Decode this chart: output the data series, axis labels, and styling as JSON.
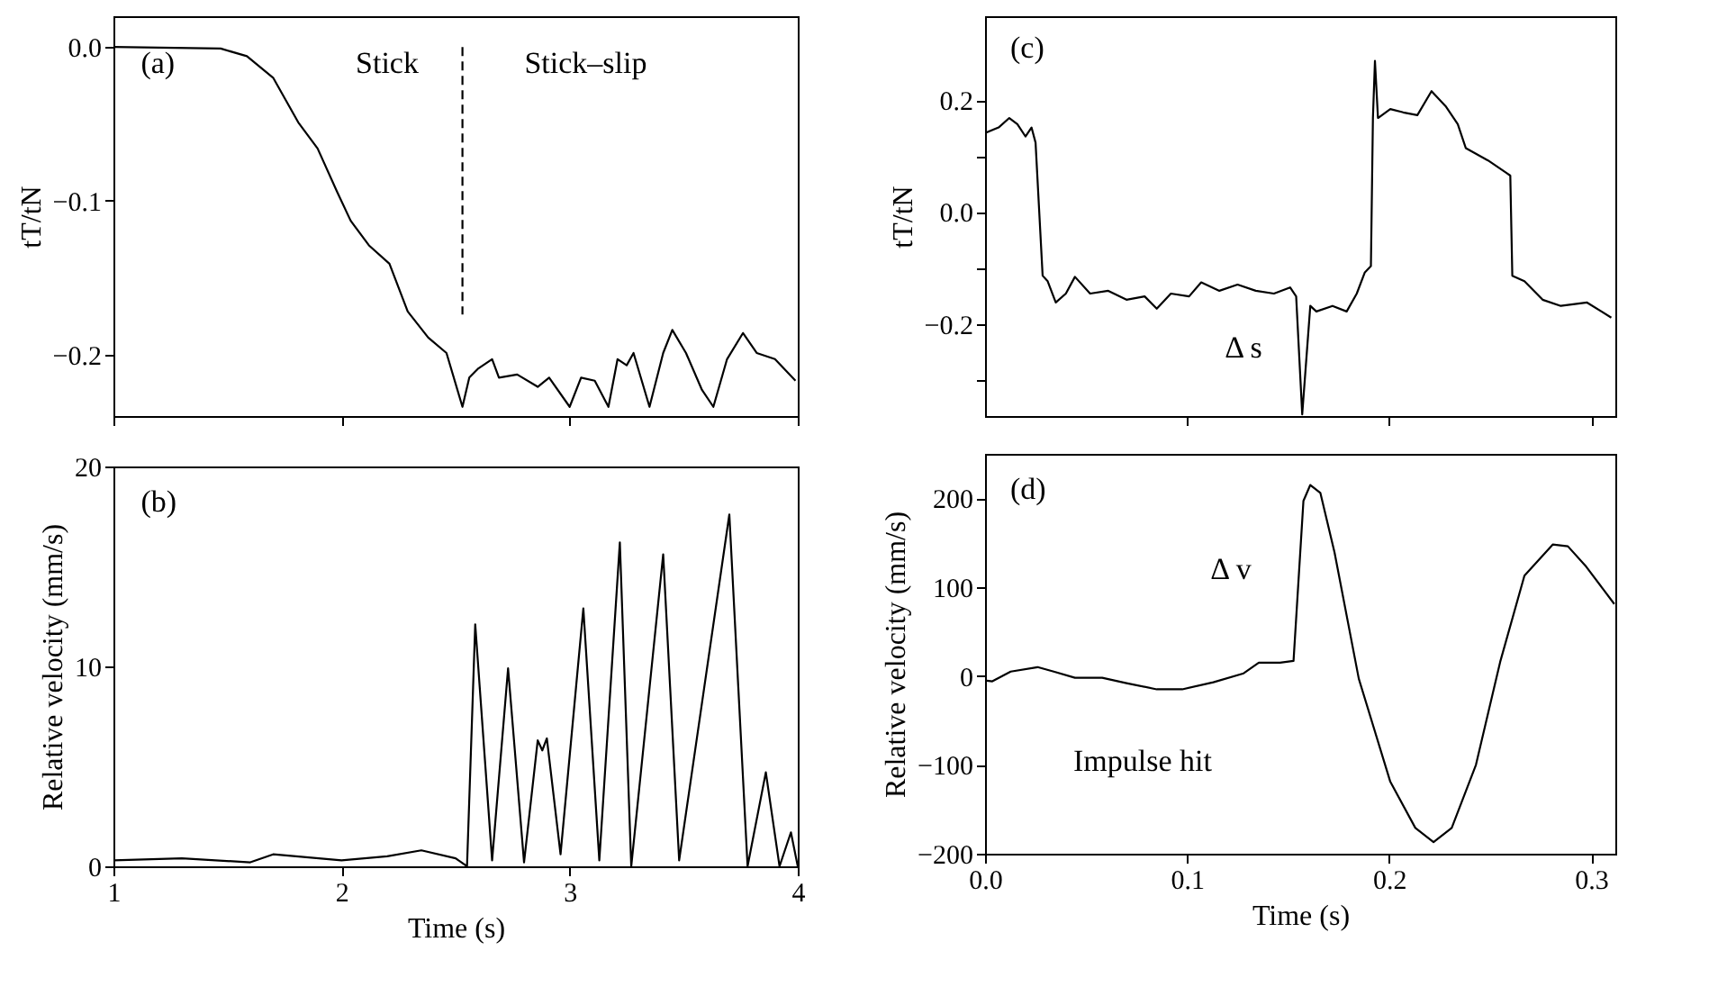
{
  "chart_data": [
    {
      "type": "line",
      "ylabel": "tT/tN",
      "xlim": [
        1,
        4
      ],
      "ylim": [
        -0.24,
        0.02
      ],
      "xticks": [
        1,
        2,
        3,
        4
      ],
      "yticks": [
        {
          "value": 0,
          "label": "0.0"
        },
        -0.1,
        -0.2
      ],
      "tick_labels": "y",
      "grid": false,
      "annotations": [
        "(a)",
        "Stick",
        "Stick–slip"
      ],
      "series": [
        {
          "color": "#000000",
          "line_style": "solid",
          "x": [
            1.0,
            1.47,
            1.585,
            1.7,
            1.81,
            1.895,
            1.98,
            2.04,
            2.12,
            2.21,
            2.29,
            2.38,
            2.46,
            2.53,
            2.56,
            2.6,
            2.66,
            2.69,
            2.77,
            2.86,
            2.91,
            3.0,
            3.05,
            3.11,
            3.17,
            3.21,
            3.25,
            3.28,
            3.35,
            3.41,
            3.45,
            3.51,
            3.58,
            3.63,
            3.69,
            3.76,
            3.82,
            3.9,
            3.99
          ],
          "values": [
            0,
            -0.001,
            -0.006,
            -0.02,
            -0.049,
            -0.066,
            -0.094,
            -0.113,
            -0.129,
            -0.141,
            -0.172,
            -0.189,
            -0.199,
            -0.234,
            -0.215,
            -0.209,
            -0.203,
            -0.215,
            -0.213,
            -0.221,
            -0.215,
            -0.234,
            -0.215,
            -0.217,
            -0.234,
            -0.203,
            -0.207,
            -0.199,
            -0.234,
            -0.199,
            -0.184,
            -0.199,
            -0.223,
            -0.234,
            -0.203,
            -0.186,
            -0.199,
            -0.203,
            -0.217
          ]
        },
        {
          "color": "#000000",
          "line_style": "dashed",
          "x": [
            2.53,
            2.53
          ],
          "values": [
            0.0,
            -0.174
          ]
        }
      ]
    },
    {
      "type": "line",
      "xlabel": "Time (s)",
      "ylabel": "Relative velocity (mm/s)",
      "xlim": [
        1,
        4
      ],
      "ylim": [
        0,
        20
      ],
      "xticks": [
        1,
        2,
        3,
        4
      ],
      "yticks": [
        0,
        10,
        20
      ],
      "grid": false,
      "annotations": [
        "(b)"
      ],
      "series": [
        {
          "color": "#000000",
          "line_style": "solid",
          "x": [
            1.0,
            1.3,
            1.6,
            1.7,
            2.0,
            2.2,
            2.35,
            2.5,
            2.55,
            2.586,
            2.66,
            2.73,
            2.8,
            2.86,
            2.88,
            2.9,
            2.96,
            3.06,
            3.13,
            3.22,
            3.27,
            3.41,
            3.48,
            3.7,
            3.78,
            3.86,
            3.92,
            3.97,
            4.0
          ],
          "values": [
            0.3,
            0.4,
            0.2,
            0.6,
            0.3,
            0.5,
            0.8,
            0.4,
            0,
            12.1,
            0.3,
            9.9,
            0.2,
            6.3,
            5.8,
            6.4,
            0.6,
            12.9,
            0.3,
            16.2,
            0,
            15.6,
            0.3,
            17.6,
            0,
            4.7,
            0,
            1.7,
            0
          ]
        }
      ]
    },
    {
      "type": "line",
      "ylabel": "tT/tN",
      "xlim": [
        0,
        0.312
      ],
      "ylim": [
        -0.365,
        0.35
      ],
      "xticks": [
        0.1,
        0.2,
        0.3
      ],
      "yticks": [
        {
          "value": -0.3,
          "label": null
        },
        -0.2,
        {
          "value": -0.1,
          "label": null
        },
        {
          "value": 0,
          "label": "0.0"
        },
        {
          "value": 0.1,
          "label": null
        },
        0.2
      ],
      "tick_labels": "y",
      "grid": false,
      "annotations": [
        "(c)",
        "Δ s"
      ],
      "series": [
        {
          "color": "#000000",
          "line_style": "solid",
          "x": [
            0,
            0.0067,
            0.012,
            0.016,
            0.02,
            0.023,
            0.025,
            0.0285,
            0.031,
            0.035,
            0.04,
            0.0445,
            0.052,
            0.061,
            0.07,
            0.079,
            0.085,
            0.092,
            0.101,
            0.107,
            0.116,
            0.125,
            0.134,
            0.143,
            0.151,
            0.154,
            0.157,
            0.161,
            0.164,
            0.172,
            0.179,
            0.184,
            0.188,
            0.191,
            0.192,
            0.193,
            0.1945,
            0.2006,
            0.207,
            0.214,
            0.221,
            0.228,
            0.234,
            0.238,
            0.249,
            0.258,
            0.26,
            0.261,
            0.267,
            0.276,
            0.285,
            0.298,
            0.31
          ],
          "values": [
            0.141,
            0.151,
            0.168,
            0.157,
            0.135,
            0.151,
            0.124,
            -0.114,
            -0.124,
            -0.162,
            -0.146,
            -0.116,
            -0.146,
            -0.141,
            -0.157,
            -0.151,
            -0.173,
            -0.146,
            -0.151,
            -0.126,
            -0.141,
            -0.13,
            -0.141,
            -0.146,
            -0.135,
            -0.151,
            -0.362,
            -0.168,
            -0.178,
            -0.168,
            -0.178,
            -0.146,
            -0.108,
            -0.097,
            0.168,
            0.27,
            0.168,
            0.184,
            0.178,
            0.173,
            0.216,
            0.189,
            0.157,
            0.114,
            0.092,
            0.07,
            0.065,
            -0.114,
            -0.124,
            -0.157,
            -0.168,
            -0.162,
            -0.189
          ]
        }
      ]
    },
    {
      "type": "line",
      "xlabel": "Time (s)",
      "ylabel": "Relative velocity (mm/s)",
      "xlim": [
        0,
        0.312
      ],
      "ylim": [
        -200,
        250
      ],
      "xticks": [
        {
          "value": 0,
          "label": "0.0"
        },
        0.1,
        0.2,
        0.3
      ],
      "yticks": [
        -200,
        -100,
        0,
        100,
        200
      ],
      "grid": false,
      "annotations": [
        "(d)",
        "Δ v",
        "Impulse hit"
      ],
      "series": [
        {
          "color": "#000000",
          "line_style": "solid",
          "x": [
            0,
            0.0036,
            0.0127,
            0.026,
            0.034,
            0.0445,
            0.058,
            0.07,
            0.085,
            0.0976,
            0.113,
            0.128,
            0.1355,
            0.146,
            0.1527,
            0.1576,
            0.161,
            0.166,
            0.173,
            0.185,
            0.2006,
            0.213,
            0.222,
            0.231,
            0.243,
            0.255,
            0.267,
            0.281,
            0.2885,
            0.2976,
            0.3115
          ],
          "values": [
            -5,
            -6,
            5,
            10,
            5,
            -2,
            -2,
            -8,
            -15,
            -15,
            -7,
            3,
            15,
            15,
            17,
            197,
            215,
            206,
            139,
            -3,
            -119,
            -171,
            -187,
            -171,
            -100,
            16,
            113,
            148,
            146,
            123,
            81
          ]
        }
      ]
    }
  ]
}
